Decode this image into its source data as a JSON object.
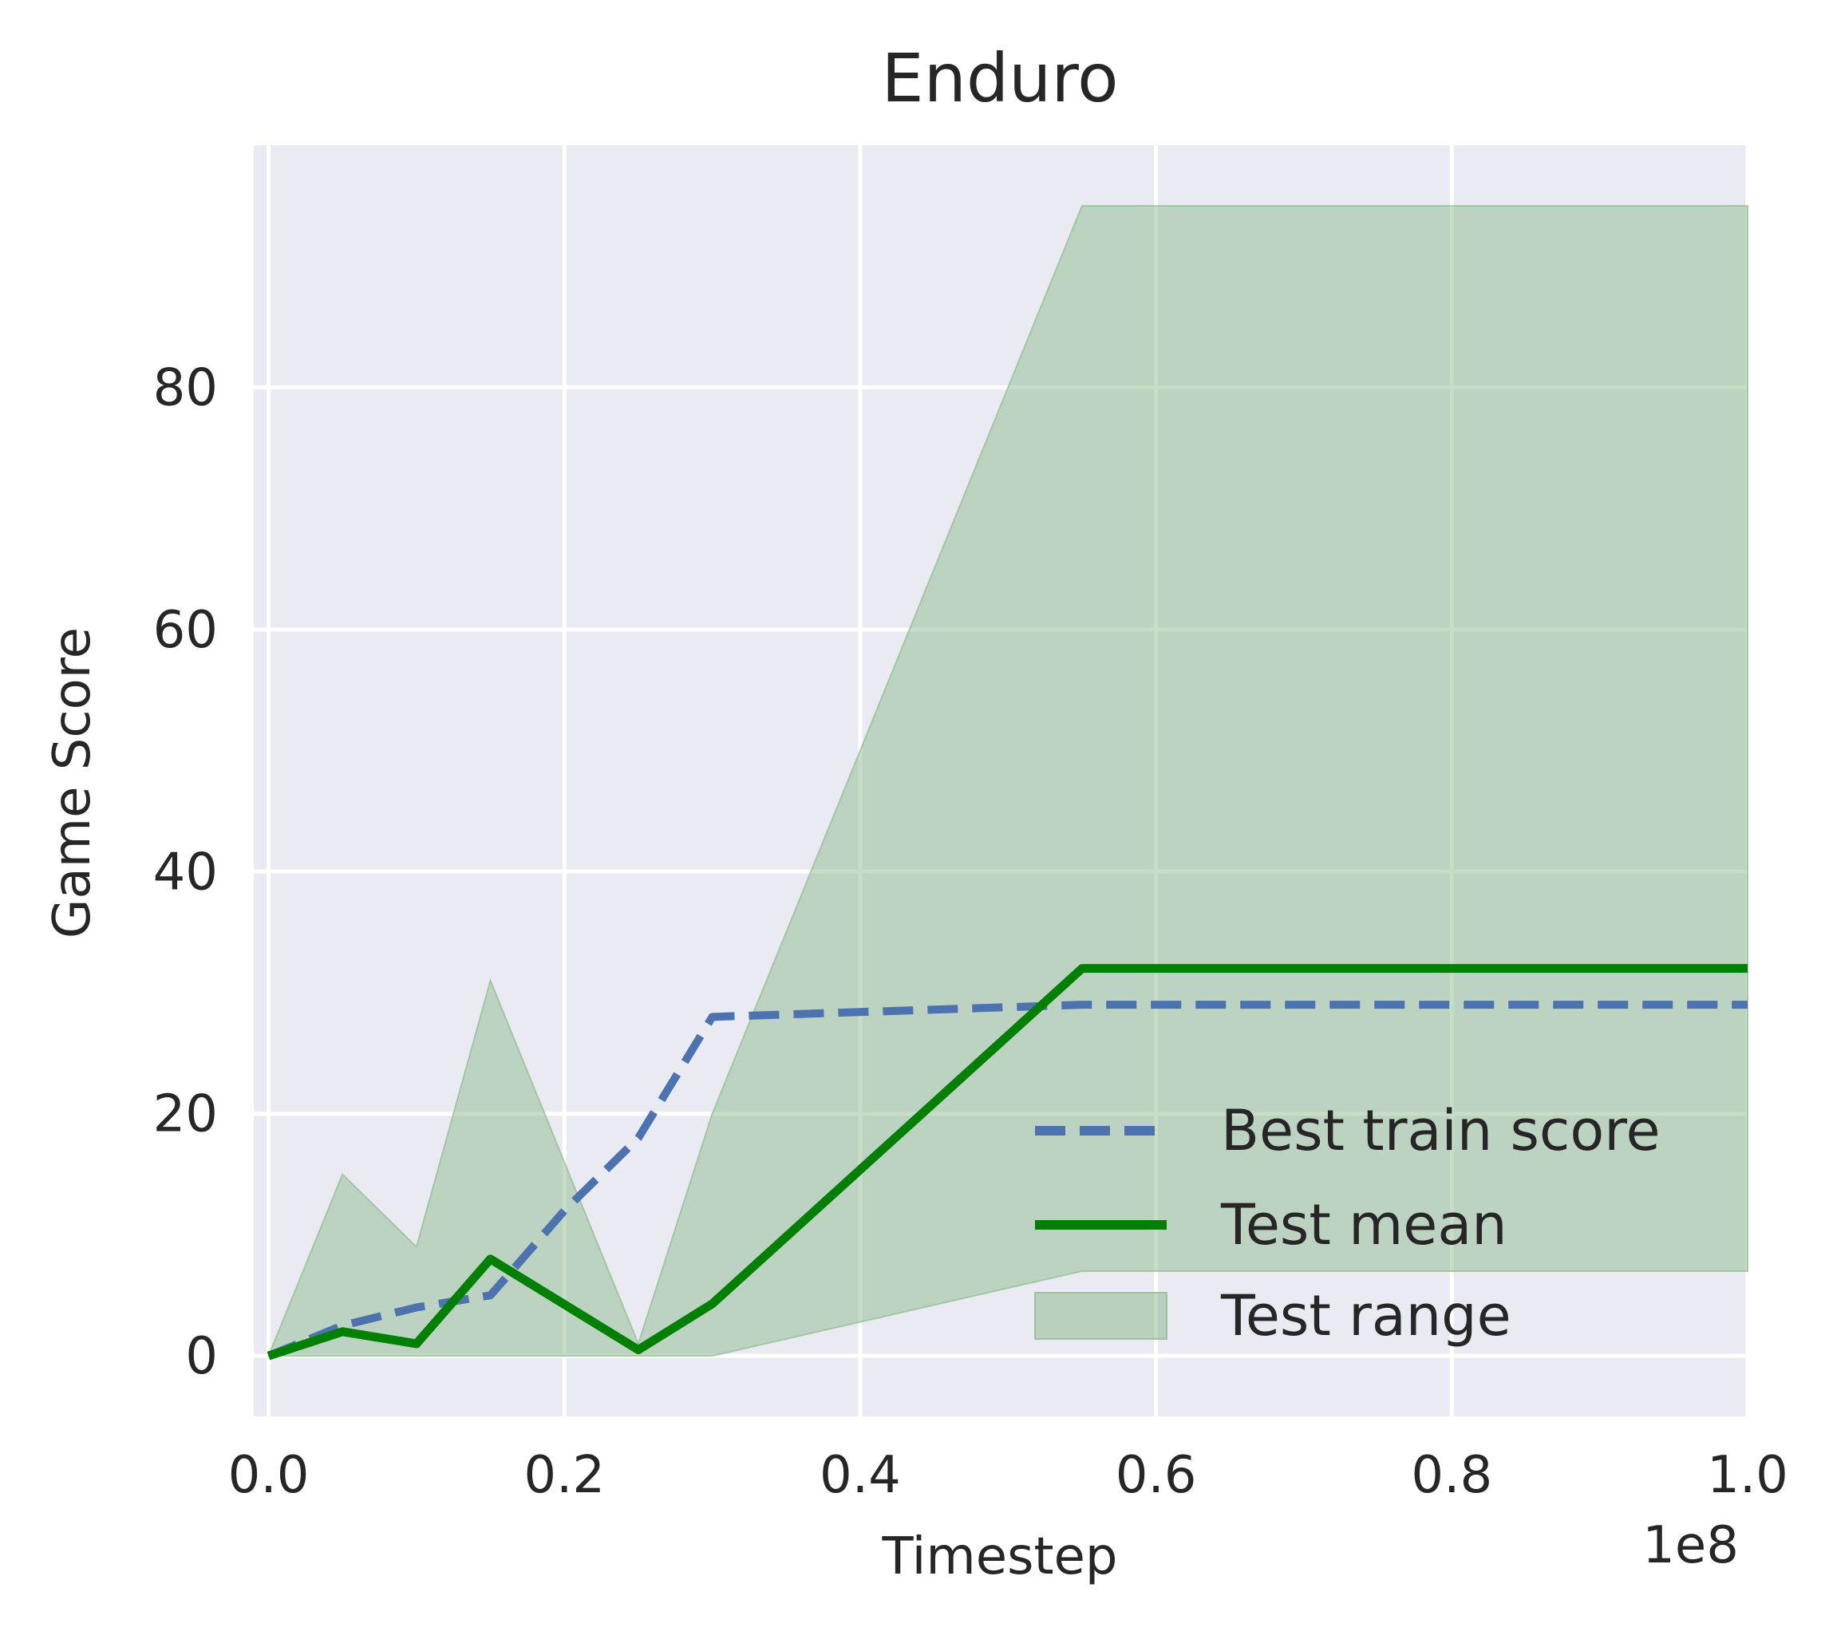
{
  "chart_data": {
    "type": "line",
    "title": "Enduro",
    "xlabel": "Timestep",
    "ylabel": "Game Score",
    "x_offset_label": "1e8",
    "xlim": [
      -0.01,
      1.0
    ],
    "ylim": [
      -5,
      100
    ],
    "xticks": [
      0.0,
      0.2,
      0.4,
      0.6,
      0.8,
      1.0
    ],
    "xtick_labels": [
      "0.0",
      "0.2",
      "0.4",
      "0.6",
      "0.8",
      "1.0"
    ],
    "yticks": [
      0,
      20,
      40,
      60,
      80
    ],
    "ytick_labels": [
      "0",
      "20",
      "40",
      "60",
      "80"
    ],
    "grid": true,
    "legend_position": "lower-right",
    "series": [
      {
        "name": "Best train score",
        "style": "dashed",
        "color": "#4c72b0",
        "x": [
          0.0,
          0.05,
          0.1,
          0.15,
          0.2,
          0.25,
          0.3,
          0.55,
          1.0
        ],
        "y": [
          0,
          2.5,
          4,
          5,
          12,
          18,
          28,
          29,
          29
        ]
      },
      {
        "name": "Test mean",
        "style": "solid",
        "color": "#008000",
        "x": [
          0.0,
          0.05,
          0.1,
          0.15,
          0.25,
          0.3,
          0.55,
          1.0
        ],
        "y": [
          0,
          2,
          1,
          8,
          0.5,
          4.3,
          32,
          32
        ]
      }
    ],
    "band": {
      "name": "Test range",
      "color": "#8fbc8f",
      "x": [
        0.0,
        0.05,
        0.1,
        0.15,
        0.25,
        0.3,
        0.55,
        1.0
      ],
      "lower": [
        0,
        0,
        0,
        0,
        0,
        0,
        7,
        7
      ],
      "upper": [
        0,
        15,
        9,
        31,
        1,
        20,
        95,
        95
      ]
    }
  }
}
